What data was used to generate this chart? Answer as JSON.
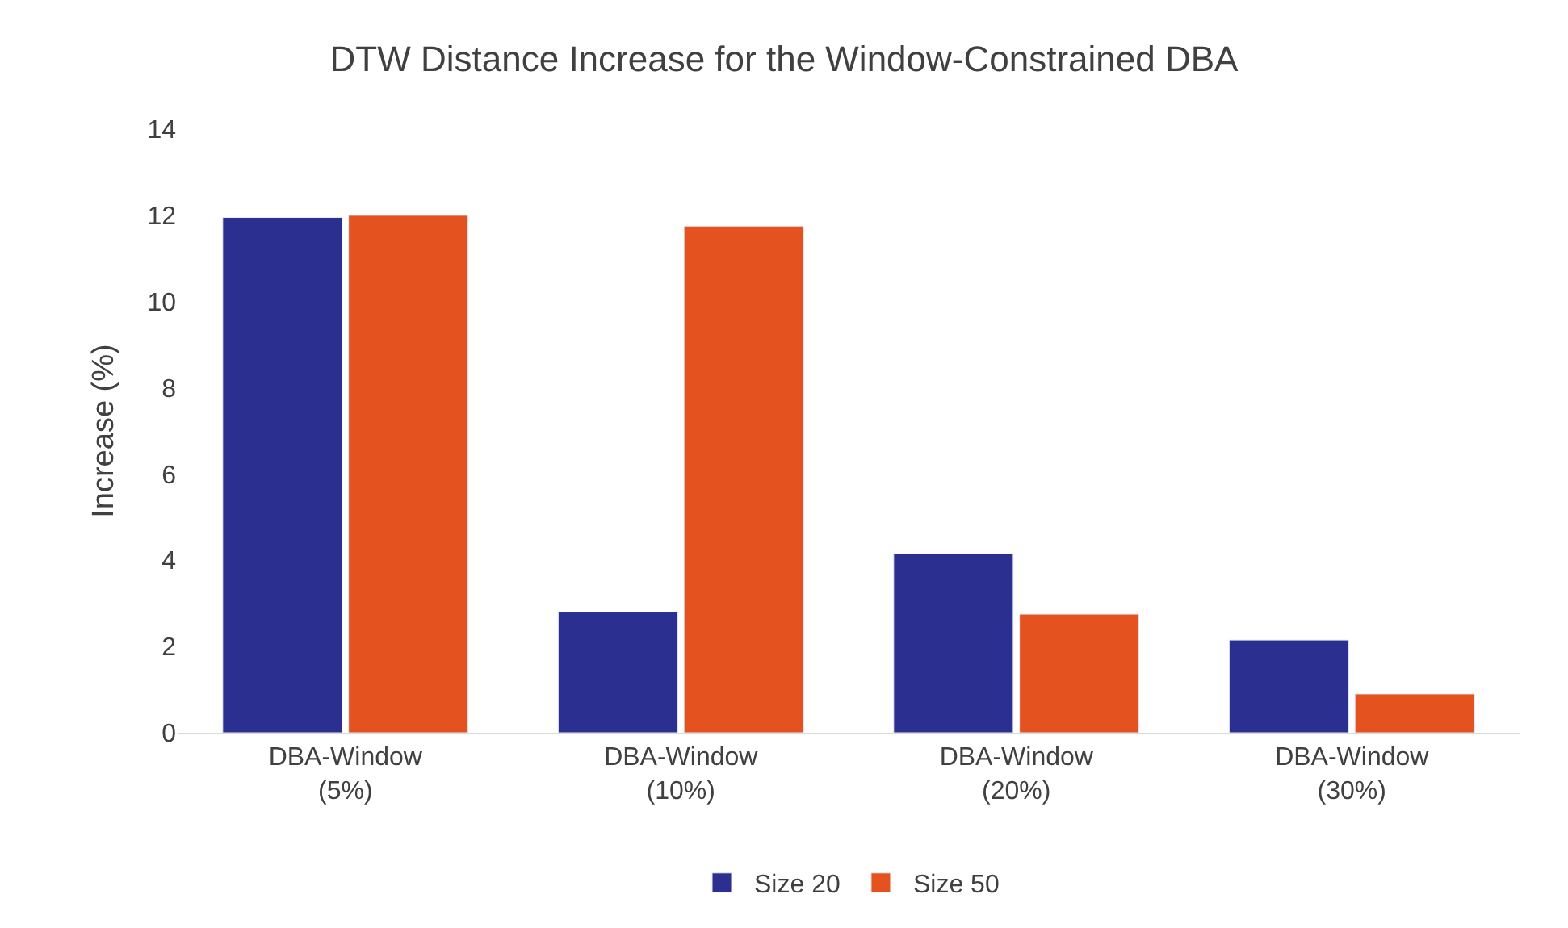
{
  "chart_data": {
    "type": "bar",
    "title": "DTW Distance Increase for the Window-Constrained DBA",
    "ylabel": "Increase (%)",
    "categories": [
      "DBA-Window\n(5%)",
      "DBA-Window\n(10%)",
      "DBA-Window\n(20%)",
      "DBA-Window\n(30%)"
    ],
    "series": [
      {
        "name": "Size 20",
        "color": "#2b2f8f",
        "values": [
          11.95,
          2.8,
          4.15,
          2.15
        ]
      },
      {
        "name": "Size 50",
        "color": "#e4531f",
        "values": [
          12.0,
          11.75,
          2.75,
          0.9
        ]
      }
    ],
    "ylim": [
      0,
      14
    ],
    "yticks": [
      0,
      2,
      4,
      6,
      8,
      10,
      12,
      14
    ],
    "legend": "bottom"
  }
}
